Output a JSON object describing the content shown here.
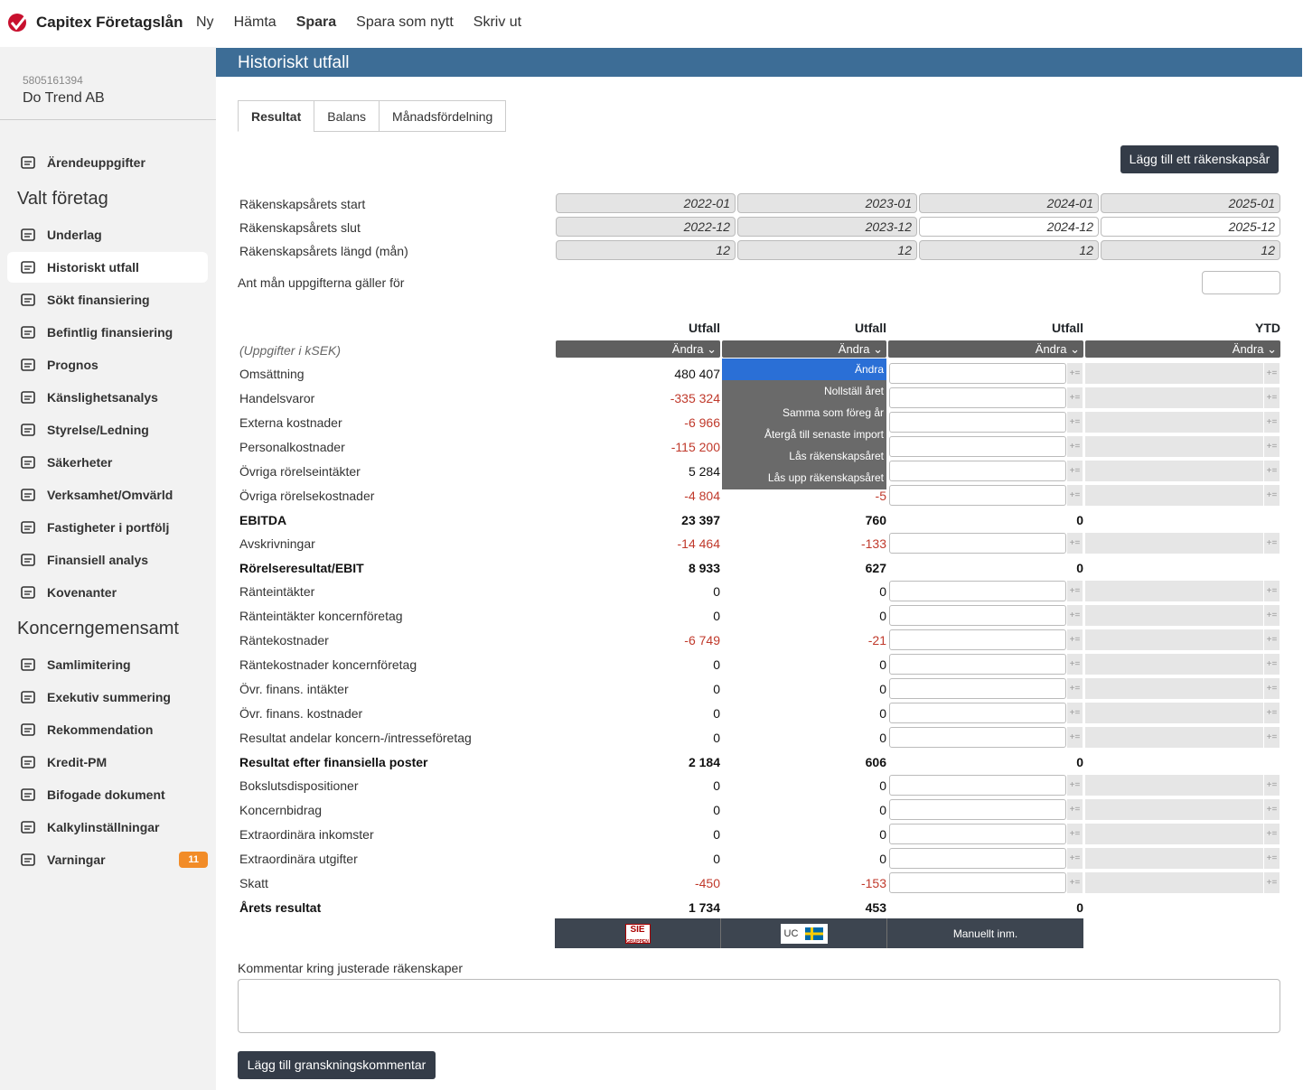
{
  "app": {
    "name": "Capitex Företagslån",
    "nav": [
      "Ny",
      "Hämta",
      "Spara",
      "Spara som nytt",
      "Skriv ut"
    ],
    "active_nav": "Spara"
  },
  "company": {
    "org_number": "5805161394",
    "name": "Do Trend AB"
  },
  "sidebar": {
    "top_item": "Ärendeuppgifter",
    "section1": "Valt företag",
    "section1_items": [
      "Underlag",
      "Historiskt utfall",
      "Sökt finansiering",
      "Befintlig finansiering",
      "Prognos",
      "Känslighetsanalys",
      "Styrelse/Ledning",
      "Säkerheter",
      "Verksamhet/Omvärld",
      "Fastigheter i portfölj",
      "Finansiell analys",
      "Kovenanter"
    ],
    "section2": "Koncerngemensamt",
    "section2_items": [
      "Samlimitering",
      "Exekutiv summering",
      "Rekommendation",
      "Kredit-PM",
      "Bifogade dokument",
      "Kalkylinställningar",
      "Varningar"
    ],
    "active": "Historiskt utfall",
    "warnings_count": "11"
  },
  "page": {
    "title": "Historiskt utfall",
    "tabs": [
      "Resultat",
      "Balans",
      "Månadsfördelning"
    ],
    "active_tab": "Resultat",
    "add_year_button": "Lägg till ett räkenskapsår"
  },
  "period": {
    "labels": [
      "Räkenskapsårets start",
      "Räkenskapsårets slut",
      "Räkenskapsårets längd (mån)"
    ],
    "start": [
      "2022-01",
      "2023-01",
      "2024-01",
      "2025-01"
    ],
    "end": [
      "2022-12",
      "2023-12",
      "2024-12",
      "2025-12"
    ],
    "length": [
      "12",
      "12",
      "12",
      "12"
    ],
    "ant_man_label": "Ant mån uppgifterna gäller för",
    "ant_man_value": ""
  },
  "table": {
    "unit_note": "(Uppgifter i kSEK)",
    "col_headers": [
      "Utfall",
      "Utfall",
      "Utfall",
      "YTD"
    ],
    "andra_label": "Ändra",
    "rows": [
      {
        "label": "Omsättning",
        "bold": false,
        "v1": "480 407",
        "v2": "",
        "neg1": false,
        "neg2": false
      },
      {
        "label": "Handelsvaror",
        "bold": false,
        "v1": "-335 324",
        "v2": "",
        "neg1": true,
        "neg2": false
      },
      {
        "label": "Externa kostnader",
        "bold": false,
        "v1": "-6 966",
        "v2": "",
        "neg1": true,
        "neg2": false
      },
      {
        "label": "Personalkostnader",
        "bold": false,
        "v1": "-115 200",
        "v2": "",
        "neg1": true,
        "neg2": false
      },
      {
        "label": "Övriga rörelseintäkter",
        "bold": false,
        "v1": "5 284",
        "v2": "",
        "neg1": false,
        "neg2": false
      },
      {
        "label": "Övriga rörelsekostnader",
        "bold": false,
        "v1": "-4 804",
        "v2": "-5",
        "neg1": true,
        "neg2": true
      },
      {
        "label": "EBITDA",
        "bold": true,
        "v1": "23 397",
        "v2": "760",
        "v3": "0"
      },
      {
        "label": "Avskrivningar",
        "bold": false,
        "v1": "-14 464",
        "v2": "-133",
        "neg1": true,
        "neg2": true
      },
      {
        "label": "Rörelseresultat/EBIT",
        "bold": true,
        "v1": "8 933",
        "v2": "627",
        "v3": "0"
      },
      {
        "label": "Ränteintäkter",
        "bold": false,
        "v1": "0",
        "v2": "0"
      },
      {
        "label": "Ränteintäkter koncernföretag",
        "bold": false,
        "v1": "0",
        "v2": "0"
      },
      {
        "label": "Räntekostnader",
        "bold": false,
        "v1": "-6 749",
        "v2": "-21",
        "neg1": true,
        "neg2": true
      },
      {
        "label": "Räntekostnader koncernföretag",
        "bold": false,
        "v1": "0",
        "v2": "0"
      },
      {
        "label": "Övr. finans. intäkter",
        "bold": false,
        "v1": "0",
        "v2": "0"
      },
      {
        "label": "Övr. finans. kostnader",
        "bold": false,
        "v1": "0",
        "v2": "0"
      },
      {
        "label": "Resultat andelar koncern-/intresseföretag",
        "bold": false,
        "v1": "0",
        "v2": "0"
      },
      {
        "label": "Resultat efter finansiella poster",
        "bold": true,
        "v1": "2 184",
        "v2": "606",
        "v3": "0"
      },
      {
        "label": "Bokslutsdispositioner",
        "bold": false,
        "v1": "0",
        "v2": "0"
      },
      {
        "label": "Koncernbidrag",
        "bold": false,
        "v1": "0",
        "v2": "0"
      },
      {
        "label": "Extraordinära inkomster",
        "bold": false,
        "v1": "0",
        "v2": "0"
      },
      {
        "label": "Extraordinära utgifter",
        "bold": false,
        "v1": "0",
        "v2": "0"
      },
      {
        "label": "Skatt",
        "bold": false,
        "v1": "-450",
        "v2": "-153",
        "neg1": true,
        "neg2": true
      },
      {
        "label": "Årets resultat",
        "bold": true,
        "v1": "1 734",
        "v2": "453",
        "v3": "0"
      }
    ]
  },
  "dropdown": {
    "items": [
      "Ändra",
      "Nollställ året",
      "Samma som föreg år",
      "Återgå till senaste import",
      "Lås räkenskapsåret",
      "Lås upp räkenskapsåret"
    ],
    "selected": "Ändra"
  },
  "sources": {
    "sie": "SIE",
    "sie_sub": "GRUPPEN",
    "uc": "UC",
    "manual": "Manuellt inm."
  },
  "comment": {
    "label": "Kommentar kring justerade räkenskaper",
    "value": "",
    "add_button": "Lägg till granskningskommentar"
  },
  "colors": {
    "header": "#3d6d96",
    "dark_button": "#343c48",
    "negative": "#c0392b",
    "badge": "#f28c28",
    "dropdown_selected": "#2a6fd6"
  }
}
